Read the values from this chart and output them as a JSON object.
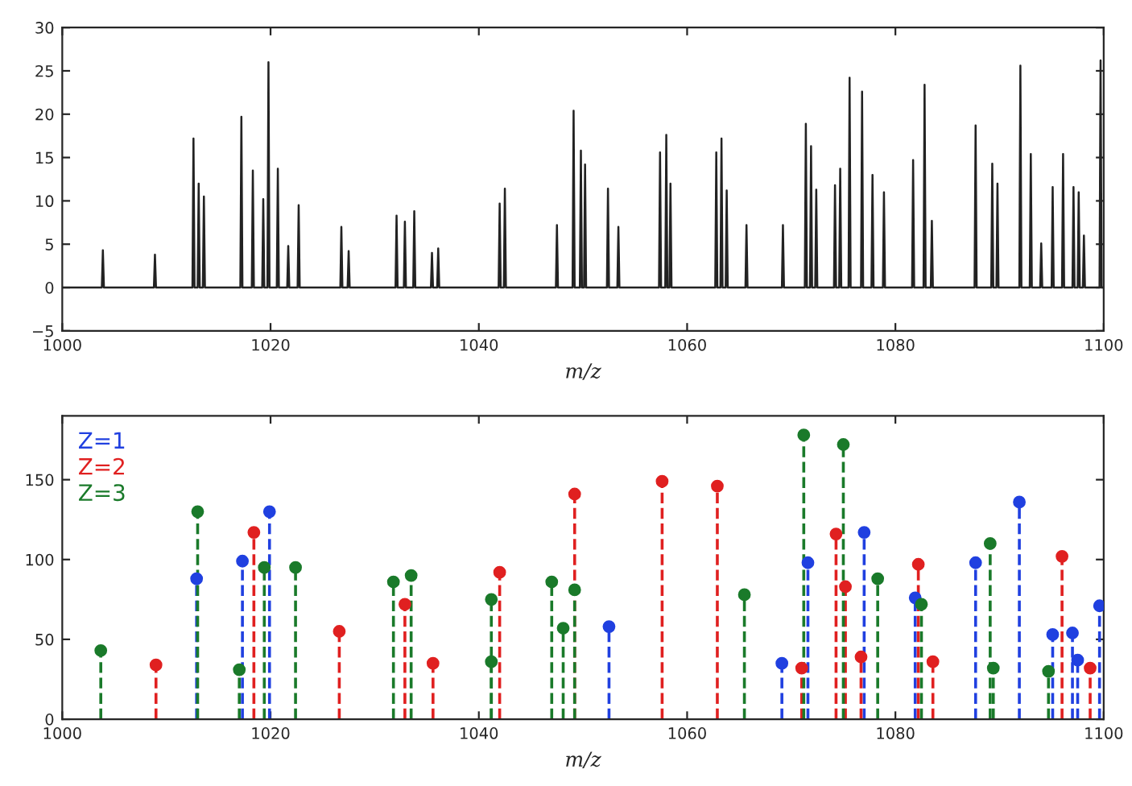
{
  "chart_data": [
    {
      "type": "line",
      "xlabel": "m/z",
      "xlim": [
        1000,
        1100
      ],
      "xticks": [
        1000,
        1020,
        1040,
        1060,
        1080,
        1100
      ],
      "ylim": [
        -5,
        30
      ],
      "yticks": [
        {
          "value": -5,
          "label": "−5"
        },
        0,
        5,
        10,
        15,
        20,
        25,
        30
      ],
      "grid": false,
      "legend": false,
      "series": [
        {
          "color": "#222222",
          "x": [
            1000,
            1003.8,
            1003.9,
            1004.0,
            1008.8,
            1008.9,
            1009.0,
            1012.5,
            1012.6,
            1012.7,
            1013.0,
            1013.1,
            1013.2,
            1013.5,
            1013.6,
            1013.7,
            1017.1,
            1017.2,
            1017.3,
            1018.2,
            1018.3,
            1018.4,
            1019.2,
            1019.3,
            1019.4,
            1019.7,
            1019.8,
            1019.9,
            1020.6,
            1020.7,
            1020.8,
            1021.6,
            1021.7,
            1021.8,
            1022.6,
            1022.7,
            1022.8,
            1026.7,
            1026.8,
            1026.9,
            1027.4,
            1027.5,
            1027.6,
            1032.0,
            1032.1,
            1032.2,
            1032.8,
            1032.9,
            1033.0,
            1033.7,
            1033.8,
            1033.9,
            1035.4,
            1035.5,
            1035.6,
            1036.0,
            1036.1,
            1036.2,
            1041.9,
            1042.0,
            1042.1,
            1042.4,
            1042.5,
            1042.6,
            1047.4,
            1047.5,
            1047.6,
            1049.0,
            1049.1,
            1049.2,
            1049.7,
            1049.8,
            1049.9,
            1050.1,
            1050.2,
            1050.3,
            1052.3,
            1052.4,
            1052.5,
            1053.3,
            1053.4,
            1053.5,
            1057.3,
            1057.4,
            1057.5,
            1057.9,
            1058.0,
            1058.1,
            1058.3,
            1058.4,
            1058.5,
            1062.7,
            1062.8,
            1062.9,
            1063.2,
            1063.3,
            1063.4,
            1063.7,
            1063.8,
            1063.9,
            1065.6,
            1065.7,
            1065.8,
            1069.1,
            1069.2,
            1069.3,
            1071.3,
            1071.4,
            1071.5,
            1071.8,
            1071.9,
            1072.0,
            1072.3,
            1072.4,
            1072.5,
            1074.1,
            1074.2,
            1074.3,
            1074.6,
            1074.7,
            1074.8,
            1075.5,
            1075.6,
            1075.7,
            1076.7,
            1076.8,
            1076.9,
            1077.7,
            1077.8,
            1077.9,
            1078.8,
            1078.9,
            1079.0,
            1081.6,
            1081.7,
            1081.8,
            1082.7,
            1082.8,
            1082.9,
            1083.4,
            1083.5,
            1083.6,
            1087.6,
            1087.7,
            1087.8,
            1089.2,
            1089.3,
            1089.4,
            1089.7,
            1089.8,
            1089.9,
            1091.9,
            1092.0,
            1092.1,
            1092.9,
            1093.0,
            1093.1,
            1093.9,
            1094.0,
            1094.1,
            1095.0,
            1095.1,
            1095.2,
            1096.0,
            1096.1,
            1096.2,
            1097.0,
            1097.1,
            1097.2,
            1097.5,
            1097.6,
            1097.7,
            1098.0,
            1098.1,
            1098.2,
            1099.6,
            1099.7,
            1099.8,
            1100
          ],
          "values": [
            0,
            0,
            4.3,
            0,
            0,
            3.8,
            0,
            0,
            17.2,
            0,
            0,
            12,
            0,
            0,
            10.5,
            0,
            0,
            19.7,
            0,
            0,
            13.5,
            0,
            0,
            10.2,
            0,
            0,
            26,
            0,
            0,
            13.7,
            0,
            0,
            4.8,
            0,
            0,
            9.5,
            0,
            0,
            7,
            0,
            0,
            4.2,
            0,
            0,
            8.3,
            0,
            0,
            7.6,
            0,
            0,
            8.8,
            0,
            0,
            4,
            0,
            0,
            4.5,
            0,
            0,
            9.7,
            0,
            0,
            11.4,
            0,
            0,
            7.2,
            0,
            0,
            20.4,
            0,
            0,
            15.8,
            0,
            0,
            14.2,
            0,
            0,
            11.4,
            0,
            0,
            7,
            0,
            0,
            15.6,
            0,
            0,
            17.6,
            0,
            0,
            12,
            0,
            0,
            15.6,
            0,
            0,
            17.2,
            0,
            0,
            11.2,
            0,
            0,
            7.2,
            0,
            0,
            7.2,
            0,
            0,
            18.9,
            0,
            0,
            16.3,
            0,
            0,
            11.3,
            0,
            0,
            11.8,
            0,
            0,
            13.7,
            0,
            0,
            24.2,
            0,
            0,
            22.6,
            0,
            0,
            13,
            0,
            0,
            11,
            0,
            0,
            14.7,
            0,
            0,
            23.4,
            0,
            0,
            7.7,
            0,
            0,
            18.7,
            0,
            0,
            14.3,
            0,
            0,
            12,
            0,
            0,
            25.6,
            0,
            0,
            15.4,
            0,
            0,
            5.1,
            0,
            0,
            11.6,
            0,
            0,
            15.4,
            0,
            0,
            11.6,
            0,
            0,
            11,
            0,
            0,
            6,
            0,
            0,
            26.2,
            0,
            0
          ]
        }
      ]
    },
    {
      "type": "lollipop",
      "xlabel": "m/z",
      "xlim": [
        1000,
        1100
      ],
      "xticks": [
        1000,
        1020,
        1040,
        1060,
        1080,
        1100
      ],
      "ylim": [
        0,
        190
      ],
      "yticks": [
        0,
        50,
        100,
        150
      ],
      "grid": false,
      "legend": "top left",
      "marker": "circle",
      "line_style": "dashed",
      "series": [
        {
          "name": "Z=1",
          "color": "#2040e0",
          "x": [
            1012.9,
            1017.3,
            1019.9,
            1052.5,
            1069.1,
            1071.6,
            1077.0,
            1081.9,
            1087.7,
            1091.9,
            1095.1,
            1097.0,
            1097.5,
            1099.6
          ],
          "values": [
            88,
            99,
            130,
            58,
            35,
            98,
            117,
            76,
            98,
            136,
            53,
            54,
            37,
            71
          ]
        },
        {
          "name": "Z=2",
          "color": "#e02020",
          "x": [
            1009.0,
            1018.4,
            1026.6,
            1032.9,
            1035.6,
            1042.0,
            1049.2,
            1057.6,
            1062.9,
            1071.0,
            1074.3,
            1075.2,
            1076.7,
            1082.2,
            1083.6,
            1096.0,
            1098.7
          ],
          "values": [
            34,
            117,
            55,
            72,
            35,
            92,
            141,
            149,
            146,
            32,
            116,
            83,
            39,
            97,
            36,
            102,
            32
          ]
        },
        {
          "name": "Z=3",
          "color": "#1a7a2a",
          "x": [
            1003.7,
            1013.0,
            1017.0,
            1019.4,
            1022.4,
            1031.8,
            1033.5,
            1041.2,
            1041.2,
            1047.0,
            1048.1,
            1049.2,
            1065.5,
            1071.2,
            1075.0,
            1078.3,
            1082.5,
            1089.1,
            1089.4,
            1094.7
          ],
          "values": [
            43,
            130,
            31,
            95,
            95,
            86,
            90,
            75,
            36,
            86,
            57,
            81,
            78,
            178,
            172,
            88,
            72,
            110,
            32,
            30
          ]
        }
      ]
    }
  ]
}
